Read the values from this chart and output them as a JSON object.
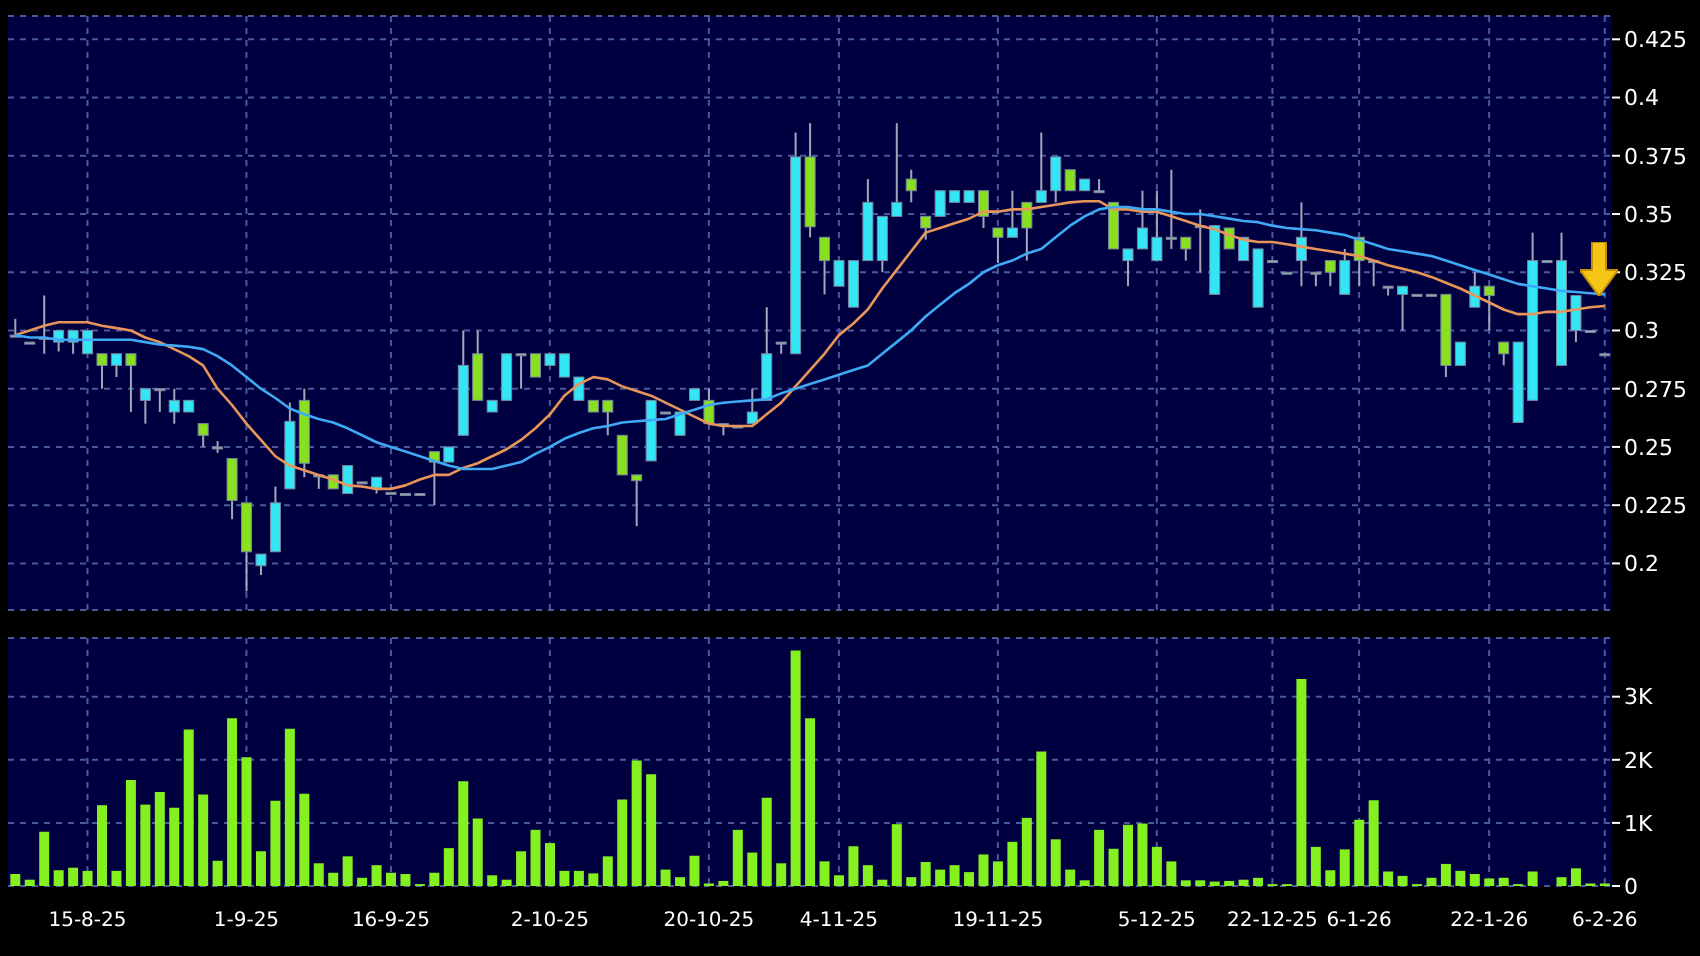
{
  "chart_data": [
    {
      "type": "candlestick",
      "categories": [
        null,
        null,
        null,
        null,
        null,
        null,
        null,
        null,
        null,
        null,
        null,
        null,
        null,
        null,
        null,
        null,
        null,
        null,
        null,
        null,
        null,
        null,
        null,
        null,
        null,
        null,
        null,
        null,
        null,
        null,
        null,
        null,
        null,
        null,
        null,
        null,
        null,
        null,
        null,
        null,
        null,
        null,
        null,
        null,
        null,
        null,
        null,
        null,
        null,
        null,
        null,
        null,
        null,
        null,
        null,
        null,
        null,
        null,
        null,
        null,
        null,
        null,
        null,
        null,
        null,
        null,
        null,
        null,
        null,
        null,
        null,
        null,
        null,
        null,
        null,
        null,
        null,
        null,
        null,
        null,
        null,
        null,
        null,
        null,
        null,
        null,
        null,
        null,
        null,
        null,
        null,
        null,
        null,
        null,
        null,
        null,
        null,
        null,
        null,
        null,
        null,
        null,
        null,
        null,
        null,
        null,
        null,
        null,
        null,
        null,
        null
      ],
      "ohlc": [
        [
          0.298,
          0.305,
          0.298,
          0.298
        ],
        [
          0.295,
          0.295,
          0.295,
          0.295
        ],
        [
          0.297,
          0.315,
          0.29,
          0.297
        ],
        [
          0.295,
          0.3,
          0.291,
          0.3
        ],
        [
          0.295,
          0.3,
          0.29,
          0.3
        ],
        [
          0.29,
          0.3,
          0.29,
          0.3
        ],
        [
          0.29,
          0.29,
          0.275,
          0.285
        ],
        [
          0.285,
          0.29,
          0.28,
          0.29
        ],
        [
          0.29,
          0.29,
          0.265,
          0.285
        ],
        [
          0.27,
          0.275,
          0.26,
          0.275
        ],
        [
          0.275,
          0.275,
          0.265,
          0.275
        ],
        [
          0.265,
          0.275,
          0.26,
          0.27
        ],
        [
          0.265,
          0.27,
          0.265,
          0.27
        ],
        [
          0.26,
          0.26,
          0.25,
          0.255
        ],
        [
          0.25,
          0.2525,
          0.2475,
          0.25
        ],
        [
          0.245,
          0.245,
          0.219,
          0.227
        ],
        [
          0.226,
          0.226,
          0.188,
          0.205
        ],
        [
          0.199,
          0.204,
          0.195,
          0.204
        ],
        [
          0.205,
          0.233,
          0.205,
          0.226
        ],
        [
          0.232,
          0.269,
          0.232,
          0.261
        ],
        [
          0.27,
          0.275,
          0.237,
          0.243
        ],
        [
          0.238,
          0.238,
          0.232,
          0.238
        ],
        [
          0.238,
          0.238,
          0.232,
          0.232
        ],
        [
          0.23,
          0.242,
          0.23,
          0.242
        ],
        [
          0.235,
          0.235,
          0.235,
          0.235
        ],
        [
          0.232,
          0.237,
          0.23,
          0.237
        ],
        [
          0.2305,
          0.2305,
          0.2305,
          0.2305
        ],
        [
          0.23,
          0.23,
          0.23,
          0.23
        ],
        [
          0.23,
          0.23,
          0.23,
          0.23
        ],
        [
          0.248,
          0.248,
          0.225,
          0.2435
        ],
        [
          0.2435,
          0.25,
          0.2435,
          0.25
        ],
        [
          0.255,
          0.3,
          0.255,
          0.285
        ],
        [
          0.29,
          0.3,
          0.27,
          0.27
        ],
        [
          0.265,
          0.27,
          0.265,
          0.27
        ],
        [
          0.27,
          0.29,
          0.27,
          0.29
        ],
        [
          0.29,
          0.29,
          0.275,
          0.29
        ],
        [
          0.29,
          0.29,
          0.28,
          0.28
        ],
        [
          0.285,
          0.29,
          0.285,
          0.29
        ],
        [
          0.28,
          0.29,
          0.28,
          0.29
        ],
        [
          0.27,
          0.28,
          0.27,
          0.28
        ],
        [
          0.27,
          0.27,
          0.265,
          0.265
        ],
        [
          0.27,
          0.27,
          0.255,
          0.265
        ],
        [
          0.255,
          0.255,
          0.238,
          0.238
        ],
        [
          0.238,
          0.238,
          0.216,
          0.2355
        ],
        [
          0.244,
          0.27,
          0.244,
          0.27
        ],
        [
          0.265,
          0.265,
          0.265,
          0.265
        ],
        [
          0.255,
          0.265,
          0.255,
          0.265
        ],
        [
          0.27,
          0.275,
          0.27,
          0.275
        ],
        [
          0.27,
          0.275,
          0.26,
          0.26
        ],
        [
          0.26,
          0.26,
          0.255,
          0.26
        ],
        [
          0.259,
          0.259,
          0.259,
          0.259
        ],
        [
          0.26,
          0.275,
          0.26,
          0.265
        ],
        [
          0.27,
          0.31,
          0.27,
          0.29
        ],
        [
          0.295,
          0.295,
          0.29,
          0.295
        ],
        [
          0.29,
          0.385,
          0.29,
          0.3745
        ],
        [
          0.3745,
          0.389,
          0.34,
          0.3445
        ],
        [
          0.34,
          0.34,
          0.3155,
          0.33
        ],
        [
          0.319,
          0.33,
          0.319,
          0.33
        ],
        [
          0.31,
          0.33,
          0.31,
          0.33
        ],
        [
          0.33,
          0.365,
          0.33,
          0.355
        ],
        [
          0.33,
          0.349,
          0.325,
          0.349
        ],
        [
          0.349,
          0.389,
          0.349,
          0.355
        ],
        [
          0.365,
          0.369,
          0.355,
          0.36
        ],
        [
          0.349,
          0.349,
          0.339,
          0.344
        ],
        [
          0.349,
          0.36,
          0.349,
          0.36
        ],
        [
          0.355,
          0.36,
          0.355,
          0.36
        ],
        [
          0.355,
          0.36,
          0.355,
          0.36
        ],
        [
          0.36,
          0.36,
          0.344,
          0.349
        ],
        [
          0.344,
          0.344,
          0.329,
          0.34
        ],
        [
          0.34,
          0.36,
          0.34,
          0.344
        ],
        [
          0.355,
          0.355,
          0.33,
          0.344
        ],
        [
          0.355,
          0.385,
          0.355,
          0.36
        ],
        [
          0.36,
          0.3745,
          0.355,
          0.3745
        ],
        [
          0.369,
          0.369,
          0.36,
          0.36
        ],
        [
          0.36,
          0.365,
          0.36,
          0.365
        ],
        [
          0.36,
          0.365,
          0.36,
          0.36
        ],
        [
          0.355,
          0.355,
          0.335,
          0.335
        ],
        [
          0.33,
          0.335,
          0.319,
          0.335
        ],
        [
          0.335,
          0.36,
          0.335,
          0.344
        ],
        [
          0.33,
          0.36,
          0.33,
          0.34
        ],
        [
          0.34,
          0.369,
          0.335,
          0.34
        ],
        [
          0.34,
          0.34,
          0.33,
          0.335
        ],
        [
          0.345,
          0.352,
          0.325,
          0.345
        ],
        [
          0.3155,
          0.345,
          0.3155,
          0.345
        ],
        [
          0.344,
          0.344,
          0.335,
          0.335
        ],
        [
          0.33,
          0.34,
          0.33,
          0.34
        ],
        [
          0.31,
          0.335,
          0.31,
          0.335
        ],
        [
          0.33,
          0.33,
          0.33,
          0.33
        ],
        [
          0.325,
          0.325,
          0.325,
          0.325
        ],
        [
          0.33,
          0.355,
          0.319,
          0.34
        ],
        [
          0.325,
          0.325,
          0.319,
          0.325
        ],
        [
          0.33,
          0.33,
          0.319,
          0.325
        ],
        [
          0.3155,
          0.335,
          0.3155,
          0.33
        ],
        [
          0.34,
          0.34,
          0.319,
          0.33
        ],
        [
          0.33,
          0.33,
          0.319,
          0.33
        ],
        [
          0.319,
          0.319,
          0.315,
          0.319
        ],
        [
          0.3155,
          0.319,
          0.3,
          0.319
        ],
        [
          0.3155,
          0.3155,
          0.3155,
          0.3155
        ],
        [
          0.3155,
          0.3155,
          0.3155,
          0.3155
        ],
        [
          0.3155,
          0.3155,
          0.28,
          0.285
        ],
        [
          0.285,
          0.295,
          0.285,
          0.295
        ],
        [
          0.31,
          0.325,
          0.31,
          0.319
        ],
        [
          0.319,
          0.319,
          0.3,
          0.315
        ],
        [
          0.295,
          0.295,
          0.285,
          0.29
        ],
        [
          0.2605,
          0.295,
          0.2605,
          0.295
        ],
        [
          0.27,
          0.342,
          0.27,
          0.33
        ],
        [
          0.33,
          0.33,
          0.33,
          0.33
        ],
        [
          0.285,
          0.342,
          0.285,
          0.33
        ],
        [
          0.3,
          0.315,
          0.295,
          0.315
        ],
        [
          0.3,
          0.3,
          0.3,
          0.3
        ],
        [
          0.29,
          0.29,
          0.29,
          0.29
        ]
      ],
      "colors": [
        "#a0a8b0",
        "#a0a8b0",
        "#a0a8b0",
        "#33e5f5",
        "#33e5f5",
        "#33e5f5",
        "#88e020",
        "#33e5f5",
        "#88e020",
        "#33e5f5",
        "#a0a8b0",
        "#33e5f5",
        "#33e5f5",
        "#88e020",
        "#a0a8b0",
        "#88e020",
        "#88e020",
        "#33e5f5",
        "#33e5f5",
        "#33e5f5",
        "#88e020",
        "#a0a8b0",
        "#88e020",
        "#33e5f5",
        "#a0a8b0",
        "#33e5f5",
        "#a0a8b0",
        "#a0a8b0",
        "#a0a8b0",
        "#88e020",
        "#33e5f5",
        "#33e5f5",
        "#88e020",
        "#33e5f5",
        "#33e5f5",
        "#a0a8b0",
        "#88e020",
        "#33e5f5",
        "#33e5f5",
        "#33e5f5",
        "#88e020",
        "#88e020",
        "#88e020",
        "#88e020",
        "#33e5f5",
        "#a0a8b0",
        "#33e5f5",
        "#33e5f5",
        "#88e020",
        "#a0a8b0",
        "#a0a8b0",
        "#33e5f5",
        "#33e5f5",
        "#a0a8b0",
        "#33e5f5",
        "#88e020",
        "#88e020",
        "#33e5f5",
        "#33e5f5",
        "#33e5f5",
        "#33e5f5",
        "#33e5f5",
        "#88e020",
        "#88e020",
        "#33e5f5",
        "#33e5f5",
        "#33e5f5",
        "#88e020",
        "#88e020",
        "#33e5f5",
        "#88e020",
        "#33e5f5",
        "#33e5f5",
        "#88e020",
        "#33e5f5",
        "#a0a8b0",
        "#88e020",
        "#33e5f5",
        "#33e5f5",
        "#33e5f5",
        "#a0a8b0",
        "#88e020",
        "#a0a8b0",
        "#33e5f5",
        "#88e020",
        "#33e5f5",
        "#33e5f5",
        "#a0a8b0",
        "#a0a8b0",
        "#33e5f5",
        "#a0a8b0",
        "#88e020",
        "#33e5f5",
        "#88e020",
        "#a0a8b0",
        "#a0a8b0",
        "#33e5f5",
        "#a0a8b0",
        "#a0a8b0",
        "#88e020",
        "#33e5f5",
        "#33e5f5",
        "#88e020",
        "#88e020",
        "#33e5f5",
        "#33e5f5",
        "#a0a8b0",
        "#33e5f5",
        "#33e5f5",
        "#a0a8b0",
        "#a0a8b0"
      ],
      "series": [
        {
          "type": "line",
          "color": "#e8955a",
          "values": [
            0.298,
            0.3,
            0.302,
            0.3035,
            0.3035,
            0.3035,
            0.302,
            0.301,
            0.3,
            0.297,
            0.295,
            0.292,
            0.289,
            0.285,
            0.275,
            0.268,
            0.26,
            0.253,
            0.246,
            0.242,
            0.24,
            0.238,
            0.236,
            0.2335,
            0.233,
            0.232,
            0.232,
            0.2335,
            0.236,
            0.238,
            0.238,
            0.241,
            0.243,
            0.246,
            0.249,
            0.253,
            0.258,
            0.264,
            0.272,
            0.277,
            0.28,
            0.279,
            0.276,
            0.274,
            0.272,
            0.269,
            0.266,
            0.263,
            0.26,
            0.259,
            0.259,
            0.259,
            0.264,
            0.269,
            0.276,
            0.283,
            0.29,
            0.298,
            0.303,
            0.309,
            0.318,
            0.326,
            0.334,
            0.342,
            0.344,
            0.346,
            0.348,
            0.351,
            0.351,
            0.352,
            0.352,
            0.353,
            0.354,
            0.355,
            0.3555,
            0.3555,
            0.352,
            0.352,
            0.351,
            0.351,
            0.349,
            0.347,
            0.345,
            0.3435,
            0.341,
            0.339,
            0.338,
            0.338,
            0.337,
            0.336,
            0.335,
            0.334,
            0.333,
            0.332,
            0.33,
            0.328,
            0.3265,
            0.325,
            0.323,
            0.3205,
            0.318,
            0.315,
            0.312,
            0.309,
            0.307,
            0.307,
            0.308,
            0.308,
            0.309,
            0.31,
            0.3105
          ]
        },
        {
          "type": "line",
          "color": "#3fa9f5",
          "values": [
            0.298,
            0.297,
            0.297,
            0.296,
            0.296,
            0.296,
            0.296,
            0.296,
            0.296,
            0.295,
            0.294,
            0.2935,
            0.293,
            0.292,
            0.289,
            0.285,
            0.28,
            0.275,
            0.271,
            0.2665,
            0.264,
            0.262,
            0.2605,
            0.258,
            0.255,
            0.252,
            0.25,
            0.248,
            0.246,
            0.244,
            0.242,
            0.2405,
            0.2405,
            0.2405,
            0.242,
            0.2435,
            0.247,
            0.25,
            0.2535,
            0.256,
            0.258,
            0.259,
            0.2605,
            0.261,
            0.2615,
            0.262,
            0.264,
            0.266,
            0.268,
            0.269,
            0.2695,
            0.27,
            0.2705,
            0.273,
            0.275,
            0.277,
            0.279,
            0.281,
            0.283,
            0.285,
            0.29,
            0.295,
            0.3,
            0.306,
            0.311,
            0.316,
            0.32,
            0.325,
            0.328,
            0.33,
            0.333,
            0.335,
            0.34,
            0.345,
            0.349,
            0.352,
            0.353,
            0.353,
            0.352,
            0.352,
            0.351,
            0.35,
            0.35,
            0.349,
            0.348,
            0.347,
            0.3465,
            0.345,
            0.344,
            0.3435,
            0.343,
            0.342,
            0.341,
            0.339,
            0.337,
            0.335,
            0.334,
            0.333,
            0.332,
            0.33,
            0.328,
            0.326,
            0.324,
            0.322,
            0.32,
            0.319,
            0.318,
            0.317,
            0.3165,
            0.316,
            0.3155
          ]
        }
      ],
      "ylim": [
        0.18,
        0.435
      ],
      "yticks": [
        0.2,
        0.225,
        0.25,
        0.275,
        0.3,
        0.325,
        0.35,
        0.375,
        0.4,
        0.425
      ],
      "grid": true,
      "marker": "none",
      "tick_labels": "y"
    },
    {
      "type": "bar",
      "categories": [
        null,
        null,
        null,
        null,
        null,
        "15-8-25",
        null,
        null,
        null,
        null,
        null,
        null,
        null,
        null,
        null,
        null,
        "1-9-25",
        null,
        null,
        null,
        null,
        null,
        null,
        null,
        null,
        null,
        "16-9-25",
        null,
        null,
        null,
        null,
        null,
        null,
        null,
        null,
        null,
        null,
        "2-10-25",
        null,
        null,
        null,
        null,
        null,
        null,
        null,
        null,
        null,
        null,
        "20-10-25",
        null,
        null,
        null,
        null,
        null,
        null,
        null,
        null,
        "4-11-25",
        null,
        null,
        null,
        null,
        null,
        null,
        null,
        null,
        null,
        null,
        "19-11-25",
        null,
        null,
        null,
        null,
        null,
        null,
        null,
        null,
        null,
        null,
        "5-12-25",
        null,
        null,
        null,
        null,
        null,
        null,
        null,
        "22-12-25",
        null,
        null,
        null,
        null,
        null,
        "6-1-26",
        null,
        null,
        null,
        null,
        null,
        null,
        null,
        null,
        "22-1-26",
        null,
        null,
        null,
        null,
        null,
        null,
        null,
        "6-2-26"
      ],
      "values": [
        190,
        100,
        860,
        250,
        290,
        240,
        1280,
        240,
        1680,
        1290,
        1490,
        1240,
        2480,
        1450,
        400,
        2660,
        2040,
        550,
        1350,
        2490,
        1460,
        360,
        210,
        470,
        130,
        330,
        210,
        190,
        30,
        210,
        600,
        1660,
        1070,
        170,
        100,
        550,
        890,
        680,
        240,
        240,
        200,
        470,
        1370,
        1990,
        1770,
        260,
        140,
        480,
        40,
        80,
        890,
        530,
        1400,
        360,
        3730,
        2660,
        390,
        170,
        630,
        330,
        100,
        980,
        140,
        380,
        260,
        330,
        220,
        500,
        390,
        700,
        1080,
        2130,
        740,
        260,
        90,
        890,
        590,
        970,
        990,
        620,
        390,
        90,
        90,
        70,
        80,
        100,
        130,
        30,
        30,
        3280,
        620,
        250,
        580,
        1050,
        1360,
        230,
        160,
        30,
        130,
        350,
        240,
        190,
        120,
        130,
        30,
        230,
        0,
        140,
        280,
        40,
        40
      ],
      "color": "#84f020",
      "ylim": [
        0,
        3930
      ],
      "yticks": [
        0,
        {
          "value": 1000,
          "label": "1K"
        },
        {
          "value": 2000,
          "label": "2K"
        },
        {
          "value": 3000,
          "label": "3K"
        }
      ],
      "grid": true
    }
  ]
}
